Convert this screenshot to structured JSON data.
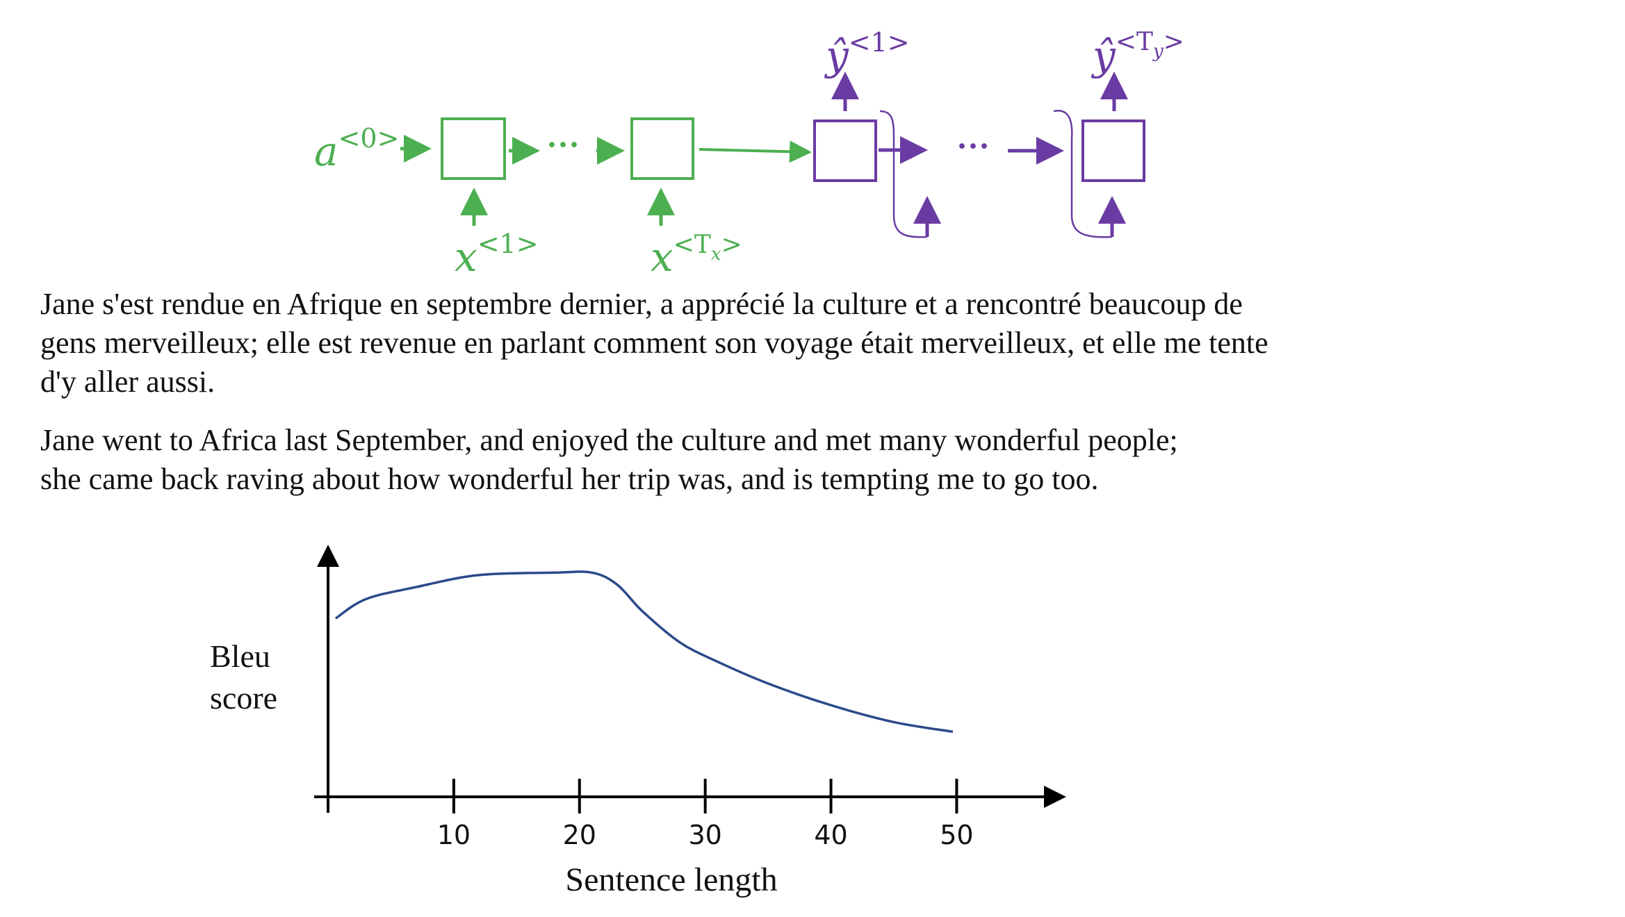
{
  "colors": {
    "encoder": "#4caf50",
    "decoder": "#6a3ba3",
    "curve": "#2c4a8a",
    "text": "#111111"
  },
  "rnn": {
    "a0_base": "a",
    "a0_sup": "<0>",
    "x1_base": "x",
    "x1_sup": "<1>",
    "xTx_base": "x",
    "xTx_sup_open": "<T",
    "xTx_sup_sub": "x",
    "xTx_sup_close": ">",
    "y1_base": "ŷ",
    "y1_sup": "<1>",
    "yTy_base": "ŷ",
    "yTy_sup_open": "<T",
    "yTy_sup_sub": "y",
    "yTy_sup_close": ">",
    "enc_dots": "···",
    "dec_dots": "···"
  },
  "french_text": {
    "line1": "Jane s'est rendue en Afrique en septembre dernier, a apprécié la culture et a rencontré beaucoup de",
    "line2": "gens merveilleux; elle est revenue en parlant comment son voyage était merveilleux, et elle me tente",
    "line3": "d'y aller aussi."
  },
  "english_text": {
    "line1": "Jane went to Africa last September, and enjoyed the culture and met many wonderful people;",
    "line2": "she came back raving about how wonderful her trip was, and is tempting me to go too."
  },
  "chart_data": {
    "type": "line",
    "title": "",
    "xlabel": "Sentence length",
    "ylabel_lines": [
      "Bleu",
      "score"
    ],
    "x_ticks": [
      10,
      20,
      30,
      40,
      50
    ],
    "xlim": [
      0,
      55
    ],
    "ylim": [
      0,
      1
    ],
    "grid": false,
    "series": [
      {
        "x": [
          0.6,
          3,
          7,
          12,
          18,
          21,
          23,
          25,
          28,
          31,
          35,
          40,
          45,
          49.7
        ],
        "y": [
          0.74,
          0.82,
          0.87,
          0.92,
          0.93,
          0.93,
          0.88,
          0.77,
          0.64,
          0.56,
          0.47,
          0.38,
          0.31,
          0.27
        ]
      }
    ]
  }
}
